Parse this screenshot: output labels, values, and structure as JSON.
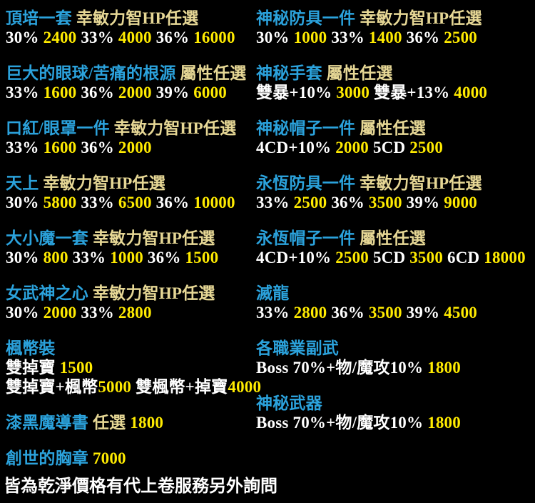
{
  "page": {
    "background": "#000000"
  },
  "colors": {
    "item_name": "#2BA2DC",
    "option_text": "#E6D795",
    "label_text": "#FFFFFF",
    "price_text": "#FFEB00"
  },
  "columns": [
    {
      "side": "left",
      "items": [
        {
          "lines": [
            [
              {
                "role": "name",
                "text": "頂培一套"
              },
              {
                "role": "option",
                "text": " 幸敏力智HP任選"
              }
            ],
            [
              {
                "role": "label",
                "text": "30% "
              },
              {
                "role": "price",
                "text": "2400"
              },
              {
                "role": "label",
                "text": " 33% "
              },
              {
                "role": "price",
                "text": "4000"
              },
              {
                "role": "label",
                "text": " 36% "
              },
              {
                "role": "price",
                "text": "16000"
              }
            ]
          ]
        },
        {
          "lines": [
            [
              {
                "role": "name",
                "text": "巨大的眼球/苦痛的根源"
              },
              {
                "role": "option",
                "text": " 屬性任選"
              }
            ],
            [
              {
                "role": "label",
                "text": "33% "
              },
              {
                "role": "price",
                "text": "1600"
              },
              {
                "role": "label",
                "text": " 36% "
              },
              {
                "role": "price",
                "text": "2000"
              },
              {
                "role": "label",
                "text": " 39% "
              },
              {
                "role": "price",
                "text": "6000"
              }
            ]
          ]
        },
        {
          "lines": [
            [
              {
                "role": "name",
                "text": "口紅/眼罩一件"
              },
              {
                "role": "option",
                "text": " 幸敏力智HP任選"
              }
            ],
            [
              {
                "role": "label",
                "text": "33% "
              },
              {
                "role": "price",
                "text": "1600"
              },
              {
                "role": "label",
                "text": " 36% "
              },
              {
                "role": "price",
                "text": "2000"
              }
            ]
          ]
        },
        {
          "lines": [
            [
              {
                "role": "name",
                "text": "天上"
              },
              {
                "role": "option",
                "text": " 幸敏力智HP任選"
              }
            ],
            [
              {
                "role": "label",
                "text": "30% "
              },
              {
                "role": "price",
                "text": "5800"
              },
              {
                "role": "label",
                "text": " 33% "
              },
              {
                "role": "price",
                "text": "6500"
              },
              {
                "role": "label",
                "text": " 36% "
              },
              {
                "role": "price",
                "text": "10000"
              }
            ]
          ]
        },
        {
          "lines": [
            [
              {
                "role": "name",
                "text": "大小魔一套"
              },
              {
                "role": "option",
                "text": " 幸敏力智HP任選"
              }
            ],
            [
              {
                "role": "label",
                "text": "30% "
              },
              {
                "role": "price",
                "text": "800"
              },
              {
                "role": "label",
                "text": " 33% "
              },
              {
                "role": "price",
                "text": "1000"
              },
              {
                "role": "label",
                "text": " 36% "
              },
              {
                "role": "price",
                "text": "1500"
              }
            ]
          ]
        },
        {
          "lines": [
            [
              {
                "role": "name",
                "text": "女武神之心"
              },
              {
                "role": "option",
                "text": " 幸敏力智HP任選"
              }
            ],
            [
              {
                "role": "label",
                "text": "30% "
              },
              {
                "role": "price",
                "text": "2000"
              },
              {
                "role": "label",
                "text": " 33% "
              },
              {
                "role": "price",
                "text": "2800"
              }
            ]
          ]
        },
        {
          "lines": [
            [
              {
                "role": "name",
                "text": "楓幣裝"
              }
            ],
            [
              {
                "role": "label",
                "text": "雙掉寶 "
              },
              {
                "role": "price",
                "text": "1500"
              }
            ],
            [
              {
                "role": "label",
                "text": "雙掉寶+楓幣"
              },
              {
                "role": "price",
                "text": "5000"
              },
              {
                "role": "label",
                "text": " 雙楓幣+掉寶"
              },
              {
                "role": "price",
                "text": "4000"
              }
            ]
          ]
        },
        {
          "lines": [
            [
              {
                "role": "name",
                "text": "漆黑魔導書"
              },
              {
                "role": "option",
                "text": " 任選"
              },
              {
                "role": "price",
                "text": " 1800"
              }
            ]
          ]
        },
        {
          "lines": [
            [
              {
                "role": "name",
                "text": "創世的胸章"
              },
              {
                "role": "price",
                "text": " 7000"
              }
            ]
          ]
        }
      ]
    },
    {
      "side": "right",
      "items": [
        {
          "lines": [
            [
              {
                "role": "name",
                "text": "神秘防具一件"
              },
              {
                "role": "option",
                "text": " 幸敏力智HP任選"
              }
            ],
            [
              {
                "role": "label",
                "text": "30% "
              },
              {
                "role": "price",
                "text": "1000"
              },
              {
                "role": "label",
                "text": " 33% "
              },
              {
                "role": "price",
                "text": "1400"
              },
              {
                "role": "label",
                "text": " 36% "
              },
              {
                "role": "price",
                "text": "2500"
              }
            ]
          ]
        },
        {
          "lines": [
            [
              {
                "role": "name",
                "text": "神秘手套"
              },
              {
                "role": "option",
                "text": " 屬性任選"
              }
            ],
            [
              {
                "role": "label",
                "text": "雙暴+10% "
              },
              {
                "role": "price",
                "text": "3000"
              },
              {
                "role": "label",
                "text": " 雙暴+13% "
              },
              {
                "role": "price",
                "text": "4000"
              }
            ]
          ]
        },
        {
          "lines": [
            [
              {
                "role": "name",
                "text": "神秘帽子一件"
              },
              {
                "role": "option",
                "text": " 屬性任選"
              }
            ],
            [
              {
                "role": "label",
                "text": "4CD+10% "
              },
              {
                "role": "price",
                "text": "2000"
              },
              {
                "role": "label",
                "text": " 5CD "
              },
              {
                "role": "price",
                "text": "2500"
              }
            ]
          ]
        },
        {
          "lines": [
            [
              {
                "role": "name",
                "text": "永恆防具一件"
              },
              {
                "role": "option",
                "text": " 幸敏力智HP任選"
              }
            ],
            [
              {
                "role": "label",
                "text": "33% "
              },
              {
                "role": "price",
                "text": "2500"
              },
              {
                "role": "label",
                "text": " 36% "
              },
              {
                "role": "price",
                "text": "3500"
              },
              {
                "role": "label",
                "text": " 39% "
              },
              {
                "role": "price",
                "text": "9000"
              }
            ]
          ]
        },
        {
          "lines": [
            [
              {
                "role": "name",
                "text": "永恆帽子一件"
              },
              {
                "role": "option",
                "text": " 屬性任選"
              }
            ],
            [
              {
                "role": "label",
                "text": "4CD+10% "
              },
              {
                "role": "price",
                "text": "2500"
              },
              {
                "role": "label",
                "text": " 5CD "
              },
              {
                "role": "price",
                "text": "3500"
              },
              {
                "role": "label",
                "text": " 6CD "
              },
              {
                "role": "price",
                "text": "18000"
              }
            ]
          ]
        },
        {
          "lines": [
            [
              {
                "role": "name",
                "text": "滅龍"
              }
            ],
            [
              {
                "role": "label",
                "text": "33% "
              },
              {
                "role": "price",
                "text": "2800"
              },
              {
                "role": "label",
                "text": " 36% "
              },
              {
                "role": "price",
                "text": "3500"
              },
              {
                "role": "label",
                "text": " 39% "
              },
              {
                "role": "price",
                "text": "4500"
              }
            ]
          ]
        },
        {
          "lines": [
            [
              {
                "role": "name",
                "text": "各職業副武"
              }
            ],
            [
              {
                "role": "label",
                "text": "Boss 70%+物/魔攻10% "
              },
              {
                "role": "price",
                "text": "1800"
              }
            ]
          ]
        },
        {
          "lines": [
            [
              {
                "role": "name",
                "text": "神秘武器"
              }
            ],
            [
              {
                "role": "label",
                "text": "Boss 70%+物/魔攻10% "
              },
              {
                "role": "price",
                "text": "1800"
              }
            ]
          ]
        }
      ]
    }
  ],
  "footer": {
    "text": "皆為乾淨價格有代上卷服務另外詢問"
  }
}
